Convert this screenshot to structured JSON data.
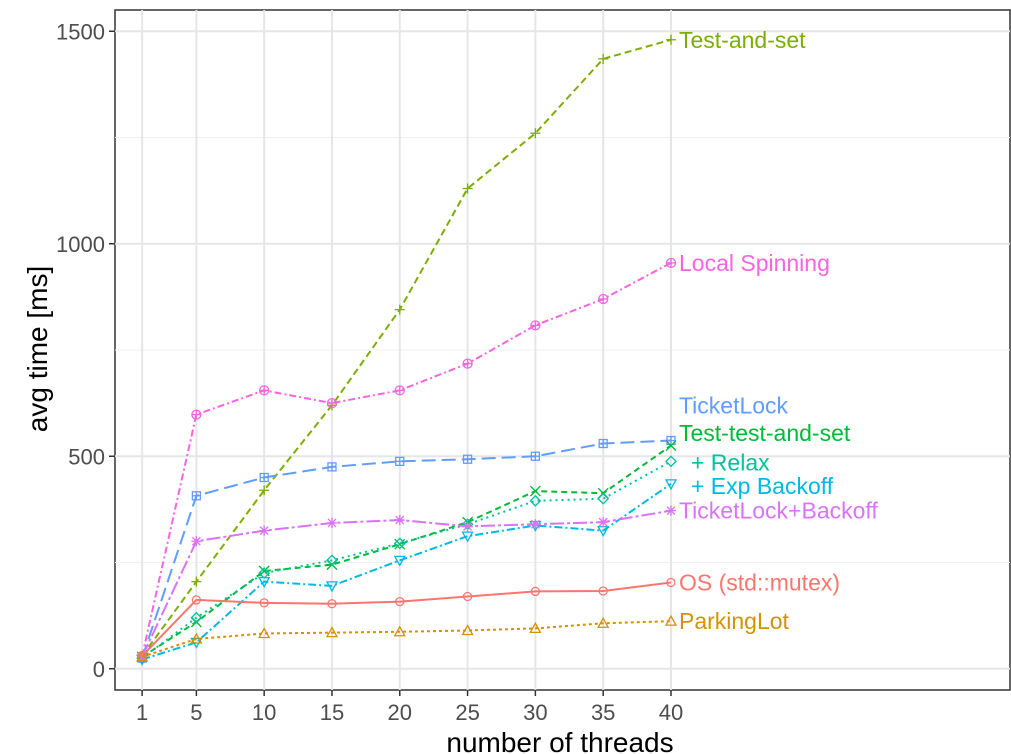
{
  "chart_data": {
    "type": "line",
    "title": "",
    "xlabel": "number of threads",
    "ylabel": "avg time [ms]",
    "x": [
      1,
      5,
      10,
      15,
      20,
      25,
      30,
      35,
      40
    ],
    "x_ticks": [
      1,
      5,
      10,
      15,
      20,
      25,
      30,
      35,
      40
    ],
    "xlim": [
      -1,
      65
    ],
    "y_ticks": [
      0,
      500,
      1000,
      1500
    ],
    "ylim": [
      -50,
      1550
    ],
    "grid": true,
    "legend": "direct labels at line ends",
    "series": [
      {
        "name": "Test-and-set",
        "color": "#7CAE00",
        "dash": "7,4",
        "marker": "plus",
        "values": [
          30,
          205,
          420,
          620,
          845,
          1130,
          1260,
          1435,
          1480
        ],
        "label_value": 1480
      },
      {
        "name": "Local Spinning",
        "color": "#F564E3",
        "dash": "7,3,2,3",
        "marker": "circleplus",
        "values": [
          30,
          598,
          655,
          625,
          655,
          718,
          808,
          870,
          955
        ],
        "label_value": 955
      },
      {
        "name": "TicketLock",
        "color": "#619CFF",
        "dash": "14,6",
        "marker": "squarebox",
        "values": [
          25,
          407,
          450,
          475,
          488,
          493,
          500,
          530,
          537
        ],
        "label_value": 620
      },
      {
        "name": "Test-test-and-set",
        "color": "#00BA38",
        "dash": "6,4",
        "marker": "x",
        "values": [
          28,
          110,
          230,
          245,
          293,
          345,
          418,
          413,
          525
        ],
        "label_value": 555
      },
      {
        "name": "+ Relax",
        "color": "#00C19F",
        "dash": "2,4",
        "marker": "diamond",
        "values": [
          25,
          120,
          225,
          255,
          295,
          340,
          395,
          400,
          488
        ],
        "label_value": 485
      },
      {
        "name": "+ Exp Backoff",
        "color": "#00B9E3",
        "dash": "8,3,2,3",
        "marker": "triangledown",
        "values": [
          22,
          62,
          205,
          195,
          255,
          312,
          337,
          325,
          435
        ],
        "label_value": 430
      },
      {
        "name": "TicketLock+Backoff",
        "color": "#DB72FB",
        "dash": "14,3,3,3",
        "marker": "asterisk",
        "values": [
          28,
          300,
          325,
          343,
          350,
          335,
          340,
          345,
          372
        ],
        "label_value": 372
      },
      {
        "name": "OS (std::mutex)",
        "color": "#F8766D",
        "dash": "",
        "marker": "circle",
        "values": [
          30,
          162,
          155,
          153,
          158,
          170,
          182,
          183,
          203
        ],
        "label_value": 203
      },
      {
        "name": "ParkingLot",
        "color": "#D39200",
        "dash": "3,3",
        "marker": "triangle",
        "values": [
          28,
          70,
          83,
          85,
          87,
          90,
          95,
          107,
          112
        ],
        "label_value": 112
      }
    ]
  }
}
